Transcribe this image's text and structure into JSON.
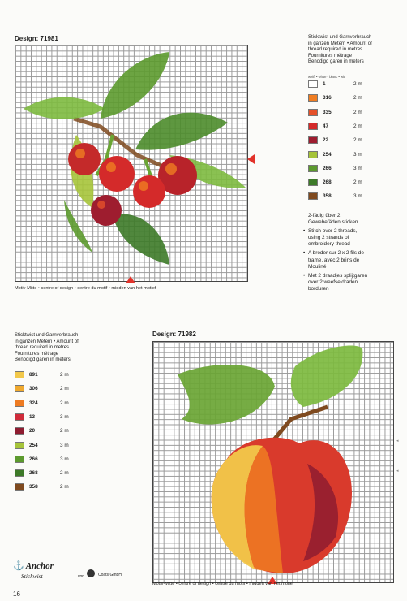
{
  "design1": {
    "title": "Design: 71981",
    "caption": "Motiv-Mitte • centre of design • centre du motif • midden van het motief"
  },
  "design2": {
    "title": "Design: 71982",
    "caption": "Motiv-Mitte • centre of design • centre du motif • midden van het motief"
  },
  "key1": {
    "heading": [
      "Sticktwist und Garnverbrauch",
      "in ganzen Metern • Amount of",
      "thread required in metres",
      "Fournitures métrage",
      "Benodigd garen in meters"
    ],
    "white_label": "weiß • white • blanc • wit",
    "rows": [
      {
        "code": "1",
        "qty": "2 m",
        "color": "#ffffff"
      },
      {
        "code": "316",
        "qty": "2 m",
        "color": "#ef7d22"
      },
      {
        "code": "335",
        "qty": "2 m",
        "color": "#e5512a"
      },
      {
        "code": "47",
        "qty": "2 m",
        "color": "#d42a2a"
      },
      {
        "code": "22",
        "qty": "2 m",
        "color": "#9e1d2f"
      },
      {
        "code": "254",
        "qty": "3 m",
        "color": "#a6c43a"
      },
      {
        "code": "266",
        "qty": "3 m",
        "color": "#5c9a2e"
      },
      {
        "code": "268",
        "qty": "2 m",
        "color": "#3d7a28"
      },
      {
        "code": "358",
        "qty": "3 m",
        "color": "#7f4a1f"
      }
    ]
  },
  "instructions": [
    [
      "2-fädig über 2",
      "Gewebefäden sticken"
    ],
    [
      "Stitch over 2 threads,",
      "using 2 strands of",
      "embroidery thread"
    ],
    [
      "A broder sur 2 x 2 fils de",
      "trame, avec 2 brins de",
      "Mouliné"
    ],
    [
      "Met 2 draadjes splijtgaren",
      "over 2 weefseldraden",
      "borduren"
    ]
  ],
  "key2": {
    "heading": [
      "Sticktwist und Garnverbrauch",
      "in ganzen Metern • Amount of",
      "thread required in metres",
      "Fournitures métrage",
      "Benodigd garen in meters"
    ],
    "rows": [
      {
        "code": "891",
        "qty": "2 m",
        "color": "#f2c84a"
      },
      {
        "code": "306",
        "qty": "2 m",
        "color": "#f0a92e"
      },
      {
        "code": "324",
        "qty": "2 m",
        "color": "#ee7b22"
      },
      {
        "code": "13",
        "qty": "3 m",
        "color": "#cf2b3a"
      },
      {
        "code": "20",
        "qty": "2 m",
        "color": "#8e1c30"
      },
      {
        "code": "254",
        "qty": "3 m",
        "color": "#a6c43a"
      },
      {
        "code": "266",
        "qty": "3 m",
        "color": "#5c9a2e"
      },
      {
        "code": "268",
        "qty": "2 m",
        "color": "#3d7a28"
      },
      {
        "code": "358",
        "qty": "2 m",
        "color": "#7f4a1f"
      }
    ]
  },
  "footer": {
    "brand": "Anchor",
    "product": "Stickwist",
    "von": "von",
    "company": "Coats GmbH",
    "page_number": "16"
  },
  "colors": {
    "marker": "#e2322a",
    "grid_border": "#444444"
  }
}
